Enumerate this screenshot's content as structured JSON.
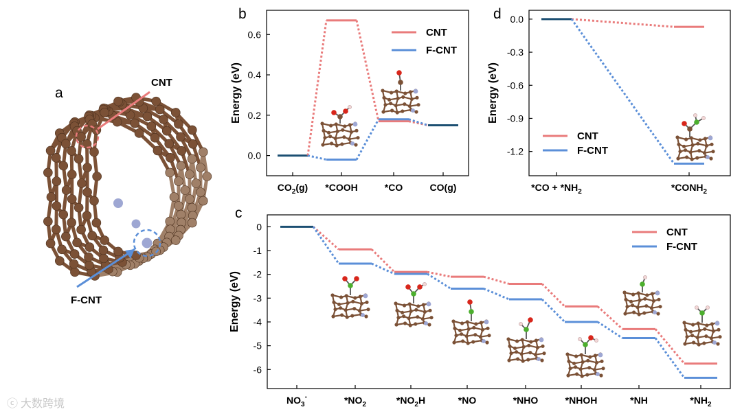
{
  "colors": {
    "cnt": "#e97b7b",
    "fcnt": "#5b8fd8",
    "shared": "#1c4f72",
    "carbon": "#7b5136",
    "carbon_light": "#a08068",
    "nitrogen": "#9ea7d3",
    "oxygen": "#d8261b",
    "hydrogen": "#f2d7d7",
    "bond_n": "#4caf2e"
  },
  "panel_a": {
    "label": "a",
    "cnt_label": "CNT",
    "fcnt_label": "F-CNT"
  },
  "watermark": "大数跨境",
  "chart_data": [
    {
      "panel": "b",
      "type": "line",
      "title": "",
      "ylabel": "Energy (eV)",
      "xlabel": "",
      "ylim": [
        -0.1,
        0.72
      ],
      "yticks": [
        "0.0",
        "0.2",
        "0.4",
        "0.6"
      ],
      "categories": [
        "CO2(g)",
        "*COOH",
        "*CO",
        "CO(g)"
      ],
      "category_labels": [
        {
          "pre": "CO",
          "sub": "2",
          "post": "(g)"
        },
        {
          "pre": "*COOH",
          "sub": "",
          "post": ""
        },
        {
          "pre": "*CO",
          "sub": "",
          "post": ""
        },
        {
          "pre": "CO(g)",
          "sub": "",
          "post": ""
        }
      ],
      "legend": [
        "CNT",
        "F-CNT"
      ],
      "legend_position": "top-right",
      "series": [
        {
          "name": "CNT",
          "values": [
            0.0,
            0.67,
            0.17,
            0.15
          ]
        },
        {
          "name": "F-CNT",
          "values": [
            0.0,
            -0.02,
            0.18,
            0.15
          ]
        }
      ]
    },
    {
      "panel": "d",
      "type": "line",
      "title": "",
      "ylabel": "Energy (eV)",
      "xlabel": "",
      "ylim": [
        -1.42,
        0.08
      ],
      "yticks": [
        "0.0",
        "-0.3",
        "-0.6",
        "-0.9",
        "-1.2"
      ],
      "categories": [
        "*CO + *NH2",
        "*CONH2"
      ],
      "category_labels": [
        {
          "pre": "*CO + *NH",
          "sub": "2",
          "post": ""
        },
        {
          "pre": "*CONH",
          "sub": "2",
          "post": ""
        }
      ],
      "legend": [
        "CNT",
        "F-CNT"
      ],
      "legend_position": "middle-left",
      "series": [
        {
          "name": "CNT",
          "values": [
            0.0,
            -0.07
          ]
        },
        {
          "name": "F-CNT",
          "values": [
            0.0,
            -1.31
          ]
        }
      ]
    },
    {
      "panel": "c",
      "type": "line",
      "title": "",
      "ylabel": "Energy (eV)",
      "xlabel": "",
      "ylim": [
        -6.8,
        0.5
      ],
      "yticks": [
        "0",
        "-1",
        "-2",
        "-3",
        "-4",
        "-5",
        "-6"
      ],
      "categories": [
        "NO3-",
        "*NO2",
        "*NO2H",
        "*NO",
        "*NHO",
        "*NHOH",
        "*NH",
        "*NH2"
      ],
      "category_labels": [
        {
          "pre": "NO",
          "sub": "3",
          "sup": "-",
          "post": ""
        },
        {
          "pre": "*NO",
          "sub": "2",
          "post": ""
        },
        {
          "pre": "*NO",
          "sub": "2",
          "post": "H"
        },
        {
          "pre": "*NO",
          "sub": "",
          "post": ""
        },
        {
          "pre": "*NHO",
          "sub": "",
          "post": ""
        },
        {
          "pre": "*NHOH",
          "sub": "",
          "post": ""
        },
        {
          "pre": "*NH",
          "sub": "",
          "post": ""
        },
        {
          "pre": "*NH",
          "sub": "2",
          "post": ""
        }
      ],
      "legend": [
        "CNT",
        "F-CNT"
      ],
      "legend_position": "top-right",
      "series": [
        {
          "name": "CNT",
          "values": [
            0.0,
            -0.95,
            -1.9,
            -2.1,
            -2.4,
            -3.35,
            -4.3,
            -5.75
          ]
        },
        {
          "name": "F-CNT",
          "values": [
            0.0,
            -1.55,
            -1.98,
            -2.6,
            -3.05,
            -4.0,
            -4.68,
            -6.35
          ]
        }
      ]
    }
  ]
}
